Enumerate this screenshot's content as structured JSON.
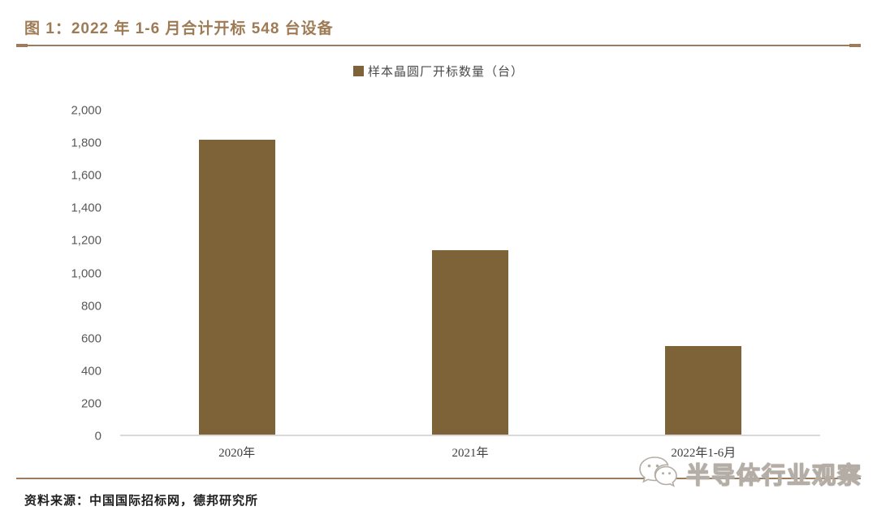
{
  "figure": {
    "title": "图 1：2022 年 1-6 月合计开标 548 台设备",
    "source": "资料来源：中国国际招标网，德邦研究所",
    "watermark": "半导体行业观察"
  },
  "legend": {
    "label": "样本晶圆厂开标数量（台）"
  },
  "colors": {
    "title": "#9E7B55",
    "rule": "#9C7C5C",
    "bar": "#7D6337",
    "y_tick": "#595959",
    "x_tick": "#3F3F3F",
    "axis_line": "#D9D9D9"
  },
  "chart_data": {
    "type": "bar",
    "title": "2022 年 1-6 月合计开标 548 台设备",
    "series_name": "样本晶圆厂开标数量（台）",
    "categories": [
      "2020年",
      "2021年",
      "2022年1-6月"
    ],
    "values": [
      1820,
      1140,
      548
    ],
    "xlabel": "",
    "ylabel": "",
    "ylim": [
      0,
      2000
    ],
    "yticks": [
      0,
      200,
      400,
      600,
      800,
      1000,
      1200,
      1400,
      1600,
      1800,
      2000
    ],
    "ytick_labels": [
      "0",
      "200",
      "400",
      "600",
      "800",
      "1,000",
      "1,200",
      "1,400",
      "1,600",
      "1,800",
      "2,000"
    ],
    "grid": false,
    "legend_position": "top-center"
  }
}
